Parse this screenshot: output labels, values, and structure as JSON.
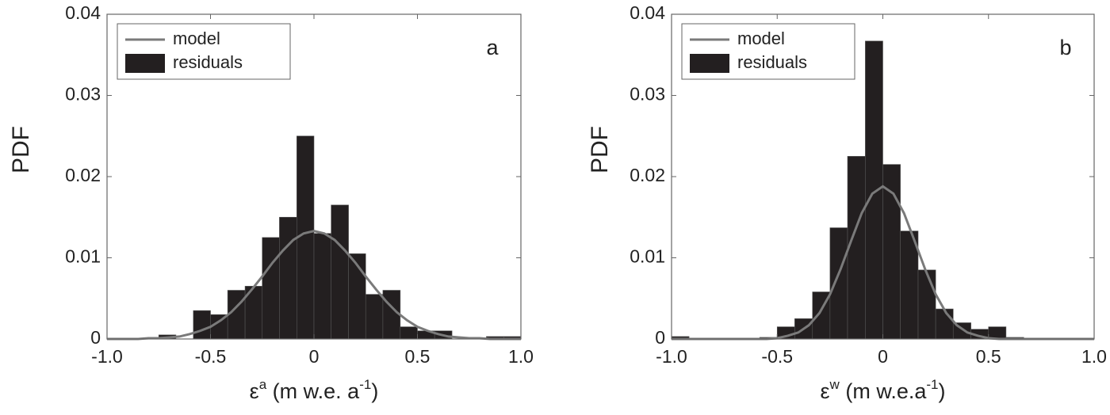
{
  "chart_data": [
    {
      "type": "histogram",
      "panel": "a",
      "y_label": "PDF",
      "x_label_parts": [
        {
          "text": "ε"
        },
        {
          "text": "a",
          "sup": true
        },
        {
          "text": " (m w.e. a"
        },
        {
          "text": "-1",
          "sup": true
        },
        {
          "text": ")"
        }
      ],
      "bins": [
        -1.0,
        -0.917,
        -0.833,
        -0.75,
        -0.667,
        -0.583,
        -0.5,
        -0.417,
        -0.333,
        -0.25,
        -0.167,
        -0.083,
        0,
        0.083,
        0.167,
        0.25,
        0.333,
        0.417,
        0.5,
        0.583,
        0.667,
        0.75,
        0.833,
        0.917,
        1.0
      ],
      "series": [
        {
          "name": "residuals",
          "color": "#231f20",
          "values": [
            0,
            0,
            0,
            0.0005,
            0,
            0.0035,
            0.003,
            0.006,
            0.0065,
            0.0125,
            0.015,
            0.025,
            0.013,
            0.0165,
            0.0105,
            0.0055,
            0.006,
            0.0015,
            0.001,
            0.001,
            0,
            0,
            0.0003,
            0.0003
          ]
        }
      ],
      "curve": {
        "name": "model",
        "color": "#7a7a7a",
        "x": [
          -1.0,
          -0.95,
          -0.9,
          -0.85,
          -0.8,
          -0.75,
          -0.7,
          -0.65,
          -0.6,
          -0.55,
          -0.5,
          -0.45,
          -0.4,
          -0.35,
          -0.3,
          -0.25,
          -0.2,
          -0.15,
          -0.1,
          -0.05,
          0,
          0.05,
          0.1,
          0.15,
          0.2,
          0.25,
          0.3,
          0.35,
          0.4,
          0.45,
          0.5,
          0.55,
          0.6,
          0.65,
          0.7,
          0.75,
          0.8,
          0.85,
          0.9,
          0.95,
          1.0
        ],
        "values": [
          0,
          0,
          0,
          0,
          0.0001,
          0.0001,
          0.0002,
          0.0003,
          0.0006,
          0.001,
          0.0015,
          0.0023,
          0.0033,
          0.0046,
          0.0061,
          0.0077,
          0.0094,
          0.0109,
          0.0122,
          0.013,
          0.0133,
          0.013,
          0.0122,
          0.0109,
          0.0094,
          0.0077,
          0.0061,
          0.0046,
          0.0033,
          0.0023,
          0.0015,
          0.001,
          0.0006,
          0.0003,
          0.0002,
          0.0001,
          0.0001,
          0,
          0,
          0,
          0
        ]
      },
      "xlim": [
        -1.0,
        1.0
      ],
      "xticks": [
        {
          "value": -1.0,
          "label": "-1.0"
        },
        -0.5,
        0,
        0.5,
        {
          "value": 1.0,
          "label": "1.0"
        }
      ],
      "ylim": [
        0,
        0.04
      ],
      "yticks": [
        0,
        0.01,
        0.02,
        0.03,
        0.04
      ],
      "legend": "upper left"
    },
    {
      "type": "histogram",
      "panel": "b",
      "y_label": "PDF",
      "x_label_parts": [
        {
          "text": "ε"
        },
        {
          "text": "w",
          "sup": true
        },
        {
          "text": " (m w.e.a"
        },
        {
          "text": "-1",
          "sup": true
        },
        {
          "text": ")"
        }
      ],
      "bins": [
        -1.0,
        -0.917,
        -0.833,
        -0.75,
        -0.667,
        -0.583,
        -0.5,
        -0.417,
        -0.333,
        -0.25,
        -0.167,
        -0.083,
        0,
        0.083,
        0.167,
        0.25,
        0.333,
        0.417,
        0.5,
        0.583,
        0.667,
        0.75,
        0.833,
        0.917,
        1.0
      ],
      "series": [
        {
          "name": "residuals",
          "color": "#231f20",
          "values": [
            0.0003,
            0,
            0,
            0,
            0,
            0.0002,
            0.0015,
            0.0025,
            0.0058,
            0.0137,
            0.0225,
            0.0367,
            0.0215,
            0.0133,
            0.0085,
            0.0037,
            0.002,
            0.0012,
            0.0015,
            0.0002,
            0,
            0,
            0,
            0
          ]
        }
      ],
      "curve": {
        "name": "model",
        "color": "#7a7a7a",
        "x": [
          -1.0,
          -0.95,
          -0.9,
          -0.85,
          -0.8,
          -0.75,
          -0.7,
          -0.65,
          -0.6,
          -0.55,
          -0.5,
          -0.45,
          -0.4,
          -0.35,
          -0.3,
          -0.25,
          -0.2,
          -0.15,
          -0.1,
          -0.05,
          0,
          0.05,
          0.1,
          0.15,
          0.2,
          0.25,
          0.3,
          0.35,
          0.4,
          0.45,
          0.5,
          0.55,
          0.6,
          0.65,
          0.7,
          0.75,
          0.8,
          0.85,
          0.9,
          0.95,
          1.0
        ],
        "values": [
          0,
          0,
          0,
          0,
          0,
          0,
          0,
          0,
          0,
          0,
          0.0001,
          0.0004,
          0.0008,
          0.0017,
          0.0032,
          0.0055,
          0.0086,
          0.0121,
          0.0155,
          0.0179,
          0.0188,
          0.0179,
          0.0155,
          0.0121,
          0.0086,
          0.0055,
          0.0032,
          0.0017,
          0.0008,
          0.0004,
          0.0001,
          0,
          0,
          0,
          0,
          0,
          0,
          0,
          0,
          0,
          0
        ]
      },
      "xlim": [
        -1.0,
        1.0
      ],
      "xticks": [
        {
          "value": -1.0,
          "label": "-1.0"
        },
        -0.5,
        0,
        0.5,
        {
          "value": 1.0,
          "label": "1.0"
        }
      ],
      "ylim": [
        0,
        0.04
      ],
      "yticks": [
        0,
        0.01,
        0.02,
        0.03,
        0.04
      ],
      "legend": "upper left"
    }
  ]
}
